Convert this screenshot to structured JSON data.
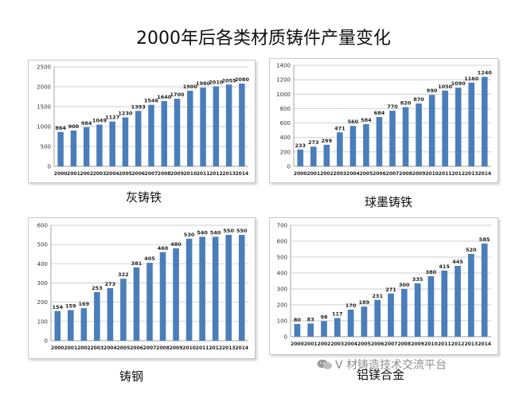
{
  "title": "2000年后各类材质铸件产量变化",
  "watermark": {
    "text": "V 材铸造技术交流平台",
    "icon": "wechat-icon"
  },
  "colors": {
    "bar": "#4a7ebb",
    "grid": "#bfbfbf",
    "axis": "#8c8c8c"
  },
  "chart_data": [
    {
      "type": "bar",
      "caption": "灰铸铁",
      "categories": [
        "2000",
        "2001",
        "2002",
        "2003",
        "2004",
        "2005",
        "2006",
        "2007",
        "2008",
        "2009",
        "2010",
        "2011",
        "2012",
        "2013",
        "2014"
      ],
      "values": [
        864,
        900,
        984,
        1049,
        1127,
        1230,
        1393,
        1546,
        1640,
        1700,
        1900,
        1980,
        2010,
        2055,
        2080
      ],
      "ylim": [
        0,
        2500
      ],
      "yticks": [
        0,
        500,
        1000,
        1500,
        2000,
        2500
      ],
      "grid": true
    },
    {
      "type": "bar",
      "caption": "球墨铸铁",
      "categories": [
        "2000",
        "2001",
        "2002",
        "2003",
        "2004",
        "2005",
        "2006",
        "2007",
        "2008",
        "2009",
        "2010",
        "2011",
        "2012",
        "2013",
        "2014"
      ],
      "values": [
        233,
        273,
        299,
        471,
        560,
        584,
        684,
        770,
        820,
        870,
        990,
        1050,
        1090,
        1160,
        1240
      ],
      "ylim": [
        0,
        1400
      ],
      "yticks": [
        0,
        200,
        400,
        600,
        800,
        1000,
        1200,
        1400
      ],
      "grid": true
    },
    {
      "type": "bar",
      "caption": "铸钢",
      "categories": [
        "2000",
        "2001",
        "2002",
        "2003",
        "2004",
        "2005",
        "2006",
        "2007",
        "2008",
        "2009",
        "2010",
        "2011",
        "2012",
        "2013",
        "2014"
      ],
      "values": [
        154,
        159,
        169,
        253,
        273,
        322,
        381,
        405,
        460,
        480,
        530,
        540,
        540,
        550,
        550
      ],
      "ylim": [
        0,
        600
      ],
      "yticks": [
        0,
        100,
        200,
        300,
        400,
        500,
        600
      ],
      "grid": true
    },
    {
      "type": "bar",
      "caption": "铝镁合金",
      "categories": [
        "2000",
        "2001",
        "2002",
        "2003",
        "2004",
        "2005",
        "2006",
        "2007",
        "2008",
        "2009",
        "2010",
        "2011",
        "2012",
        "2013",
        "2014"
      ],
      "values": [
        80,
        83,
        98,
        117,
        170,
        189,
        231,
        271,
        300,
        335,
        380,
        415,
        445,
        520,
        585
      ],
      "ylim": [
        0,
        700
      ],
      "yticks": [
        0,
        100,
        200,
        300,
        400,
        500,
        600,
        700
      ],
      "grid": true
    }
  ]
}
